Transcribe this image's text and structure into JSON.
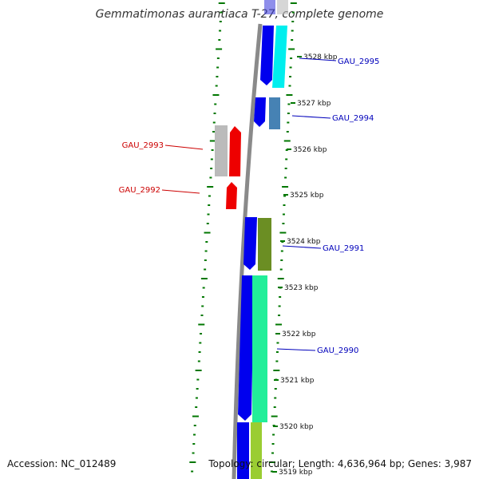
{
  "title": "Gemmatimonas aurantiaca T-27, complete genome",
  "footer": {
    "accession": "Accession: NC_012489",
    "summary": "Topology: circular; Length: 4,636,964 bp; Genes: 3,987"
  },
  "colors": {
    "backbone": "#8a8a8a",
    "tick": "#007700",
    "label_forward": "#0000bb",
    "label_reverse": "#cc0000"
  },
  "chart_data": {
    "type": "genome-map",
    "scale_labels": [
      {
        "text": "3528 kbp"
      },
      {
        "text": "3527 kbp"
      },
      {
        "text": "3526 kbp"
      },
      {
        "text": "3525 kbp"
      },
      {
        "text": "3524 kbp"
      },
      {
        "text": "3523 kbp"
      },
      {
        "text": "3522 kbp"
      },
      {
        "text": "3521 kbp"
      },
      {
        "text": "3520 kbp"
      },
      {
        "text": "3519 kbp"
      }
    ],
    "gene_labels": [
      {
        "text": "GAU_2995",
        "strand": "forward"
      },
      {
        "text": "GAU_2994",
        "strand": "forward"
      },
      {
        "text": "GAU_2993",
        "strand": "reverse"
      },
      {
        "text": "GAU_2992",
        "strand": "reverse"
      },
      {
        "text": "GAU_2991",
        "strand": "forward"
      },
      {
        "text": "GAU_2990",
        "strand": "forward"
      }
    ]
  }
}
